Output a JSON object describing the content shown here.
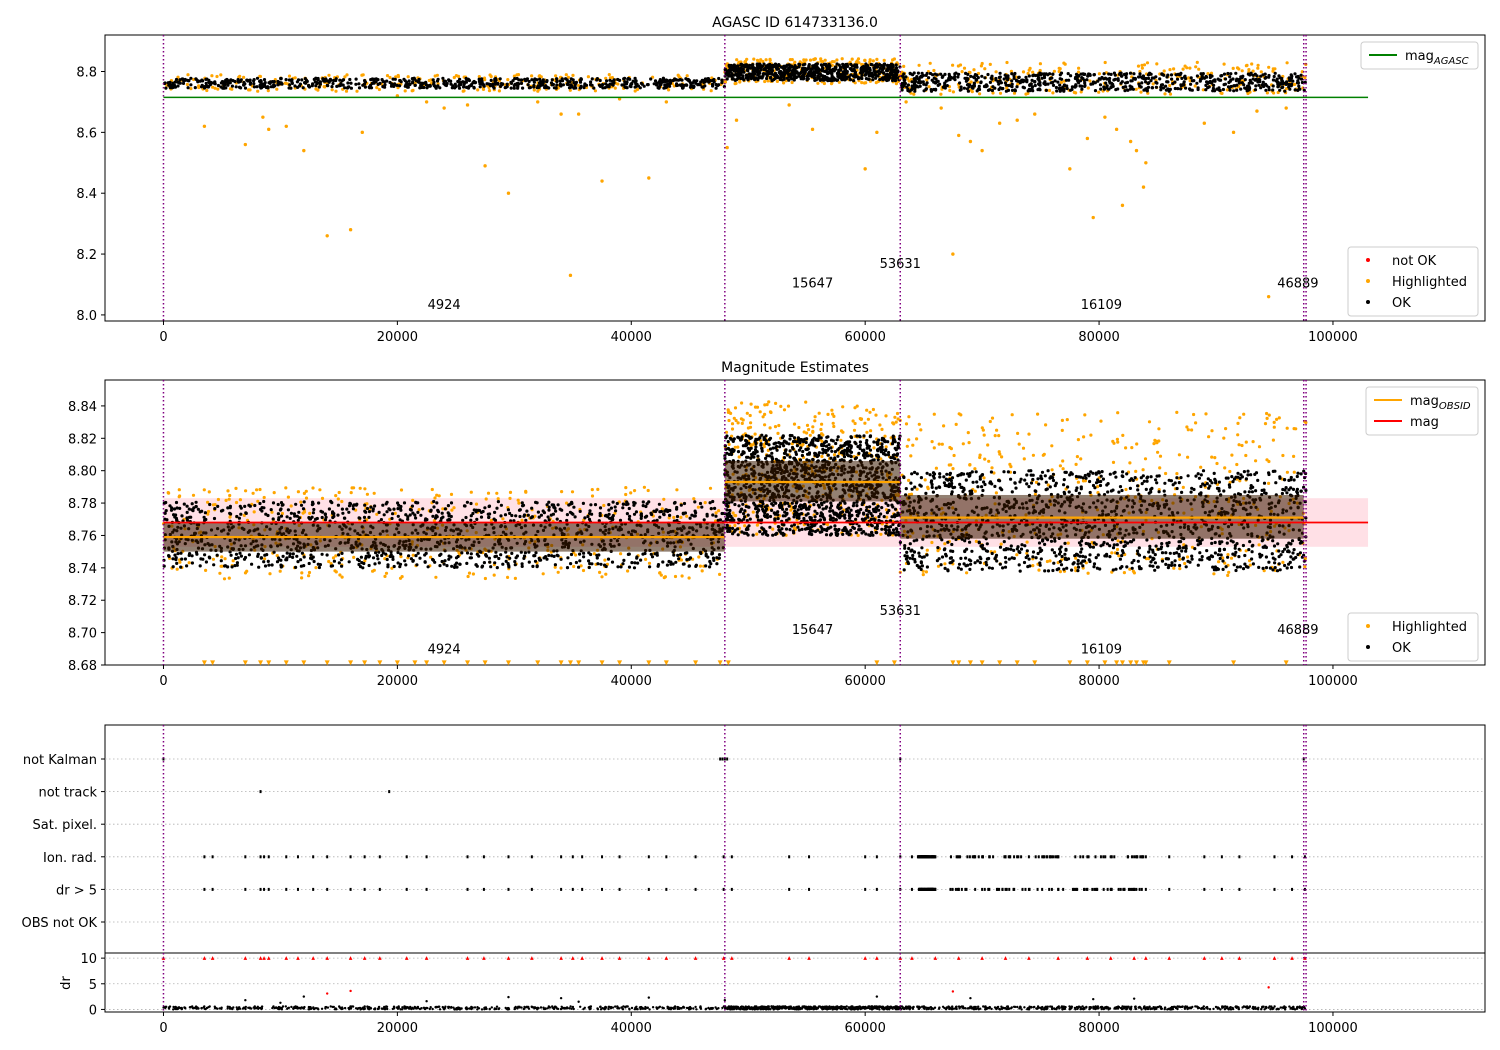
{
  "figure": {
    "title": "AGASC ID 614733136.0"
  },
  "colors": {
    "ok": "#000000",
    "highlighted": "#ffa500",
    "not_ok": "#ff0000",
    "agasc_line": "#008000",
    "mag_line": "#ff0000",
    "obsid_line": "#ffa500",
    "obs_boundary": "#800080",
    "mag_band": "#ffe0e6",
    "grid": "#b0b0b0"
  },
  "chart_data": [
    {
      "type": "scatter",
      "title": "AGASC ID 614733136.0",
      "xlim": [
        -5000,
        113000
      ],
      "ylim": [
        7.98,
        8.92
      ],
      "x_ticks": [
        0,
        20000,
        40000,
        60000,
        80000,
        100000
      ],
      "x_tick_labels": [
        "0",
        "20000",
        "40000",
        "60000",
        "80000",
        "100000"
      ],
      "y_ticks": [
        8.0,
        8.2,
        8.4,
        8.6,
        8.8
      ],
      "y_tick_labels": [
        "8.0",
        "8.2",
        "8.4",
        "8.6",
        "8.8"
      ],
      "grid": false,
      "legends": [
        {
          "position": "upper right",
          "entries": [
            {
              "label": "mag",
              "sub": "AGASC",
              "type": "line",
              "color": "#008000"
            }
          ]
        },
        {
          "position": "lower right",
          "entries": [
            {
              "label": "not OK",
              "type": "marker",
              "color": "#ff0000"
            },
            {
              "label": "Highlighted",
              "type": "marker",
              "color": "#ffa500"
            },
            {
              "label": "OK",
              "type": "marker",
              "color": "#000000"
            }
          ]
        }
      ],
      "mag_agasc": {
        "value": 8.715,
        "x_range": [
          0,
          103000
        ]
      },
      "obs_boundaries": [
        0,
        48000,
        63000,
        97500,
        97700
      ],
      "obs_labels": [
        {
          "text": "4924",
          "x": 24000,
          "y": 8.02
        },
        {
          "text": "15647",
          "x": 55500,
          "y": 8.09
        },
        {
          "text": "53631",
          "x": 63000,
          "y": 8.155
        },
        {
          "text": "16109",
          "x": 80200,
          "y": 8.02
        },
        {
          "text": "46889",
          "x": 97000,
          "y": 8.09
        }
      ],
      "segments": [
        {
          "x": [
            0,
            48000
          ],
          "ok_band": [
            8.745,
            8.778
          ],
          "highlight_band": [
            8.735,
            8.79
          ]
        },
        {
          "x": [
            48000,
            63000
          ],
          "ok_band": [
            8.77,
            8.825
          ],
          "highlight_band": [
            8.76,
            8.842
          ]
        },
        {
          "x": [
            63000,
            97700
          ],
          "ok_band": [
            8.735,
            8.795
          ],
          "highlight_band": [
            8.725,
            8.83
          ]
        }
      ],
      "outliers": [
        [
          3500,
          8.62
        ],
        [
          7000,
          8.56
        ],
        [
          8500,
          8.65
        ],
        [
          9000,
          8.61
        ],
        [
          10500,
          8.62
        ],
        [
          12000,
          8.54
        ],
        [
          14000,
          8.26
        ],
        [
          16000,
          8.28
        ],
        [
          17000,
          8.6
        ],
        [
          20000,
          8.72
        ],
        [
          22500,
          8.7
        ],
        [
          24000,
          8.68
        ],
        [
          26000,
          8.69
        ],
        [
          27500,
          8.49
        ],
        [
          29500,
          8.4
        ],
        [
          32000,
          8.7
        ],
        [
          34000,
          8.66
        ],
        [
          34800,
          8.13
        ],
        [
          35500,
          8.66
        ],
        [
          37500,
          8.44
        ],
        [
          39000,
          8.71
        ],
        [
          41500,
          8.45
        ],
        [
          43000,
          8.7
        ],
        [
          48200,
          8.55
        ],
        [
          49000,
          8.64
        ],
        [
          53500,
          8.69
        ],
        [
          55500,
          8.61
        ],
        [
          60000,
          8.48
        ],
        [
          61000,
          8.6
        ],
        [
          63500,
          8.7
        ],
        [
          66500,
          8.68
        ],
        [
          67500,
          8.2
        ],
        [
          68000,
          8.59
        ],
        [
          69000,
          8.57
        ],
        [
          70000,
          8.54
        ],
        [
          71500,
          8.63
        ],
        [
          73000,
          8.64
        ],
        [
          74500,
          8.66
        ],
        [
          77500,
          8.48
        ],
        [
          79000,
          8.58
        ],
        [
          79500,
          8.32
        ],
        [
          80500,
          8.65
        ],
        [
          81500,
          8.61
        ],
        [
          82000,
          8.36
        ],
        [
          82700,
          8.57
        ],
        [
          83200,
          8.54
        ],
        [
          83800,
          8.42
        ],
        [
          84000,
          8.5
        ],
        [
          89000,
          8.63
        ],
        [
          91500,
          8.6
        ],
        [
          93500,
          8.67
        ],
        [
          94500,
          8.06
        ],
        [
          96000,
          8.68
        ]
      ]
    },
    {
      "type": "scatter",
      "title": "Magnitude Estimates",
      "xlim": [
        -5000,
        113000
      ],
      "ylim": [
        8.68,
        8.856
      ],
      "x_ticks": [
        0,
        20000,
        40000,
        60000,
        80000,
        100000
      ],
      "x_tick_labels": [
        "0",
        "20000",
        "40000",
        "60000",
        "80000",
        "100000"
      ],
      "y_ticks": [
        8.68,
        8.7,
        8.72,
        8.74,
        8.76,
        8.78,
        8.8,
        8.82,
        8.84
      ],
      "y_tick_labels": [
        "8.68",
        "8.70",
        "8.72",
        "8.74",
        "8.76",
        "8.78",
        "8.80",
        "8.82",
        "8.84"
      ],
      "grid": false,
      "legends": [
        {
          "position": "upper right",
          "entries": [
            {
              "label": "mag",
              "sub": "OBSID",
              "type": "line",
              "color": "#ffa500"
            },
            {
              "label": "mag",
              "type": "line",
              "color": "#ff0000"
            }
          ]
        },
        {
          "position": "lower right",
          "entries": [
            {
              "label": "Highlighted",
              "type": "marker",
              "color": "#ffa500"
            },
            {
              "label": "OK",
              "type": "marker",
              "color": "#000000"
            }
          ]
        }
      ],
      "mag": {
        "value": 8.768,
        "band": [
          8.753,
          8.783
        ],
        "x_range": [
          0,
          103000
        ]
      },
      "obsid_mags": [
        {
          "x": [
            0,
            48000
          ],
          "value": 8.759,
          "band": [
            8.75,
            8.768
          ]
        },
        {
          "x": [
            48000,
            63000
          ],
          "value": 8.793,
          "band": [
            8.781,
            8.806
          ]
        },
        {
          "x": [
            63000,
            97500
          ],
          "value": 8.771,
          "band": [
            8.758,
            8.785
          ]
        }
      ],
      "obs_boundaries": [
        0,
        48000,
        63000,
        97500,
        97700
      ],
      "obs_labels": [
        {
          "text": "4924",
          "x": 24000,
          "y": 8.687
        },
        {
          "text": "15647",
          "x": 55500,
          "y": 8.699
        },
        {
          "text": "53631",
          "x": 63000,
          "y": 8.711
        },
        {
          "text": "16109",
          "x": 80200,
          "y": 8.687
        },
        {
          "text": "46889",
          "x": 97000,
          "y": 8.699
        }
      ],
      "segments": [
        {
          "x": [
            0,
            48000
          ],
          "ok_band": [
            8.74,
            8.781
          ],
          "highlight_band": [
            8.733,
            8.79
          ]
        },
        {
          "x": [
            48000,
            63000
          ],
          "ok_band": [
            8.76,
            8.822
          ],
          "highlight_band": [
            8.76,
            8.843
          ]
        },
        {
          "x": [
            63000,
            97700
          ],
          "ok_band": [
            8.738,
            8.8
          ],
          "highlight_band": [
            8.735,
            8.836
          ]
        }
      ],
      "off_scale_marker_y": 8.681
    },
    {
      "type": "scatter",
      "title": "",
      "xlim": [
        -5000,
        113000
      ],
      "x_ticks": [
        0,
        20000,
        40000,
        60000,
        80000,
        100000
      ],
      "x_tick_labels": [
        "0",
        "20000",
        "40000",
        "60000",
        "80000",
        "100000"
      ],
      "flag_rows": [
        "not Kalman",
        "not track",
        "Sat. pixel.",
        "Ion. rad.",
        "dr > 5",
        "OBS not OK"
      ],
      "grid": true,
      "obs_boundaries": [
        0,
        48000,
        63000,
        97500,
        97700
      ],
      "flags": {
        "not Kalman": [
          0,
          47600,
          47800,
          48000,
          48200,
          63000,
          97500
        ],
        "not track": [
          8300,
          19300
        ],
        "Ion. rad.": [
          3500,
          4200,
          7000,
          8300,
          8600,
          9000,
          10500,
          11500,
          12800,
          14000,
          16000,
          17200,
          18500,
          20800,
          22500,
          26000,
          27400,
          29500,
          31500,
          34000,
          35000,
          35800,
          37500,
          39000,
          41500,
          43000,
          45500,
          47900,
          48600,
          53500,
          55200,
          60000,
          61000,
          63000,
          64000,
          66000,
          68000,
          70000,
          72000,
          74000,
          76500,
          79000,
          81000,
          83000,
          84000,
          86000,
          89000,
          90500,
          92000,
          95000,
          96500,
          97600
        ],
        "dr > 5": [
          3500,
          4200,
          7000,
          8300,
          8600,
          9000,
          10500,
          11500,
          12800,
          14000,
          16000,
          17200,
          18500,
          20800,
          22500,
          26000,
          27400,
          29500,
          31500,
          34000,
          35000,
          35800,
          37500,
          39000,
          41500,
          43000,
          45500,
          47900,
          48600,
          53500,
          55200,
          60000,
          61000,
          63000,
          64000,
          66000,
          68000,
          70000,
          72000,
          74000,
          76500,
          79000,
          81000,
          83000,
          84000,
          86000,
          89000,
          90500,
          92000,
          95000,
          96500,
          97600
        ]
      },
      "flag_dense_ranges": {
        "Ion. rad.": [
          [
            67000,
            84000
          ],
          [
            64500,
            66000
          ]
        ],
        "dr > 5": [
          [
            67000,
            84000
          ],
          [
            64500,
            66000
          ]
        ]
      }
    },
    {
      "type": "scatter",
      "title": "",
      "ylabel": "dr",
      "xlim": [
        -5000,
        113000
      ],
      "ylim": [
        -0.5,
        11
      ],
      "x_ticks": [
        0,
        20000,
        40000,
        60000,
        80000,
        100000
      ],
      "x_tick_labels": [
        "0",
        "20000",
        "40000",
        "60000",
        "80000",
        "100000"
      ],
      "y_ticks": [
        0,
        5,
        10
      ],
      "y_tick_labels": [
        "0",
        "5",
        "10"
      ],
      "grid": true,
      "obs_boundaries": [
        0,
        48000,
        63000,
        97500,
        97700
      ],
      "clipped_value": 10,
      "clipped_x": [
        0,
        3500,
        4200,
        7000,
        8300,
        8600,
        9000,
        10500,
        11500,
        12800,
        14000,
        16000,
        17200,
        18500,
        20800,
        22500,
        26000,
        27400,
        29500,
        31500,
        34000,
        35000,
        35800,
        37500,
        39000,
        41500,
        43000,
        45500,
        47900,
        48600,
        53500,
        55200,
        60000,
        61000,
        63000,
        64000,
        66000,
        68000,
        70000,
        72000,
        74000,
        76500,
        79000,
        81000,
        83000,
        84000,
        86000,
        89000,
        90500,
        92000,
        95000,
        96500,
        97600
      ],
      "scattered": [
        [
          7000,
          1.8
        ],
        [
          10000,
          1.3
        ],
        [
          12000,
          2.5
        ],
        [
          14000,
          3.1
        ],
        [
          16000,
          3.6
        ],
        [
          22500,
          1.6
        ],
        [
          29500,
          2.4
        ],
        [
          34000,
          2.2
        ],
        [
          35500,
          1.5
        ],
        [
          41500,
          2.3
        ],
        [
          48000,
          1.8
        ],
        [
          61000,
          2.5
        ],
        [
          67500,
          3.5
        ],
        [
          69000,
          2.2
        ],
        [
          79500,
          2.0
        ],
        [
          83000,
          2.1
        ],
        [
          94500,
          4.3
        ]
      ]
    }
  ]
}
